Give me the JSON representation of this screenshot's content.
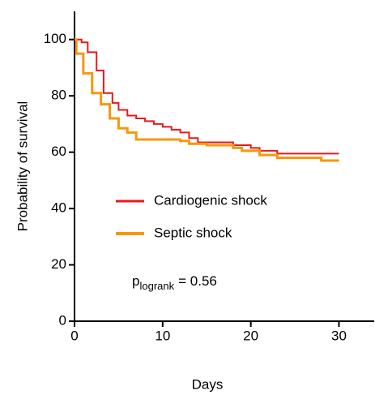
{
  "chart_data": {
    "type": "step",
    "xlabel": "Days",
    "ylabel": "Probability of survival",
    "xlim": [
      0,
      34
    ],
    "ylim": [
      0,
      110
    ],
    "xticks": [
      0,
      10,
      20,
      30
    ],
    "yticks": [
      0,
      20,
      40,
      60,
      80,
      100
    ],
    "legend": "center-left",
    "series": [
      {
        "name": "Cardiogenic shock",
        "color": "#e8191c",
        "line_width": 2,
        "x": [
          0,
          0.8,
          1.5,
          2.5,
          3.3,
          4.3,
          5,
          6,
          7,
          8,
          9,
          10,
          11,
          12,
          13,
          14,
          18,
          20,
          21,
          23,
          30
        ],
        "values": [
          100,
          99,
          95.5,
          89,
          81,
          77.5,
          75,
          73,
          72,
          71,
          70,
          69,
          68,
          67,
          65,
          63.5,
          62.5,
          61.5,
          60.5,
          59.5,
          59.5
        ]
      },
      {
        "name": "Septic shock",
        "color": "#f7970c",
        "line_width": 3,
        "x": [
          0,
          0.2,
          1,
          2,
          3,
          4,
          5,
          6,
          7,
          12,
          13,
          15,
          18,
          19,
          21,
          23,
          28,
          30
        ],
        "values": [
          100,
          95,
          88,
          81,
          77,
          72,
          68.5,
          67,
          64.5,
          64,
          63,
          62.5,
          61.5,
          60.5,
          59,
          58,
          57,
          57
        ]
      }
    ],
    "annotation": {
      "text": "p",
      "subscript": "logrank",
      "suffix": "= 0.56"
    }
  }
}
